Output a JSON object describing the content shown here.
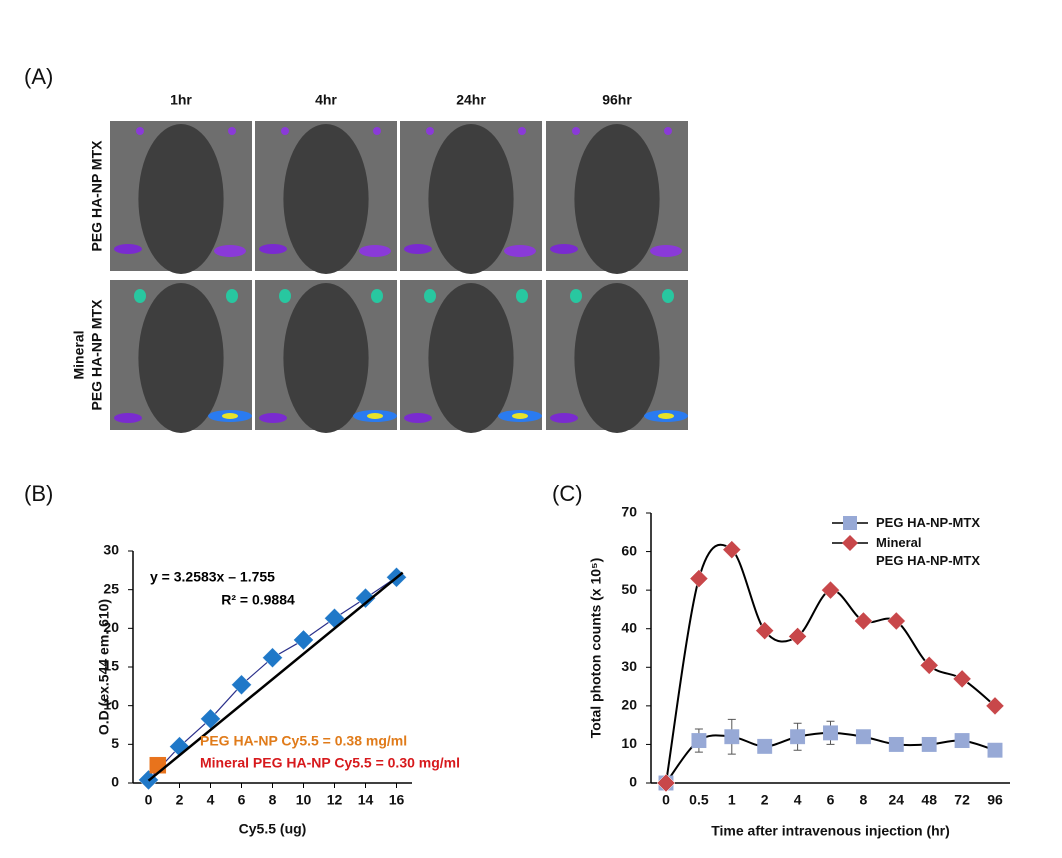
{
  "panel_a": {
    "label": "(A)",
    "columns": [
      "1hr",
      "4hr",
      "24hr",
      "96hr"
    ],
    "rows": [
      [
        "PEG HA-NP MTX"
      ],
      [
        "Mineral",
        "PEG HA-NP MTX"
      ]
    ]
  },
  "chart_data": [
    {
      "type": "scatter",
      "label": "(B)",
      "xlabel": "Cy5.5 (ug)",
      "ylabel": "O.D (ex.544 em. 610)",
      "xlim": [
        -1,
        17
      ],
      "ylim": [
        0,
        30
      ],
      "xticks": [
        0,
        2,
        4,
        6,
        8,
        10,
        12,
        14,
        16
      ],
      "yticks": [
        0,
        5,
        10,
        15,
        20,
        25,
        30
      ],
      "series": [
        {
          "color": "#1f78c8",
          "line_color": "#2a2f8a",
          "marker": "diamond",
          "x": [
            0,
            2,
            4,
            6,
            8,
            10,
            12,
            14,
            16
          ],
          "values": [
            0.4,
            4.7,
            8.3,
            12.7,
            16.2,
            18.5,
            21.3,
            23.9,
            26.6
          ]
        },
        {
          "color": "#e8731c",
          "marker": "square",
          "x": [
            0.6
          ],
          "values": [
            2.3
          ]
        },
        {
          "color": "#000000",
          "marker": "none",
          "x": [
            0,
            16.4
          ],
          "values": [
            0.3,
            27.2
          ]
        }
      ],
      "annotations": [
        {
          "text": "y = 3.2583x – 1.755",
          "color": "#000000"
        },
        {
          "text": "R² = 0.9884",
          "color": "#000000"
        },
        {
          "text": "PEG HA-NP Cy5.5 = 0.38 mg/ml",
          "color": "#e07b1a"
        },
        {
          "text": "Mineral PEG HA-NP Cy5.5 = 0.30 mg/ml",
          "color": "#d7191c"
        }
      ]
    },
    {
      "type": "line",
      "label": "(C)",
      "xlabel": "Time after intravenous injection (hr)",
      "ylabel": "Total photon counts (x 10⁵)",
      "categories": [
        "0",
        "0.5",
        "1",
        "2",
        "4",
        "6",
        "8",
        "24",
        "48",
        "72",
        "96"
      ],
      "ylim": [
        0,
        70
      ],
      "yticks": [
        0,
        10,
        20,
        30,
        40,
        50,
        60,
        70
      ],
      "legend": "top-right",
      "series": [
        {
          "name": "PEG HA-NP-MTX",
          "color": "#97a9d6",
          "marker": "square",
          "values": [
            0,
            11,
            12,
            9.5,
            12,
            13,
            12,
            10,
            10,
            11,
            8.5
          ],
          "errors": [
            0.5,
            3,
            4.5,
            1,
            3.5,
            3,
            1,
            1,
            1,
            1,
            1
          ]
        },
        {
          "name": "Mineral\nPEG HA-NP-MTX",
          "color": "#c8474a",
          "marker": "diamond",
          "values": [
            0,
            53,
            60.5,
            39.5,
            38,
            50,
            42,
            42,
            30.5,
            27,
            20
          ]
        }
      ]
    }
  ]
}
